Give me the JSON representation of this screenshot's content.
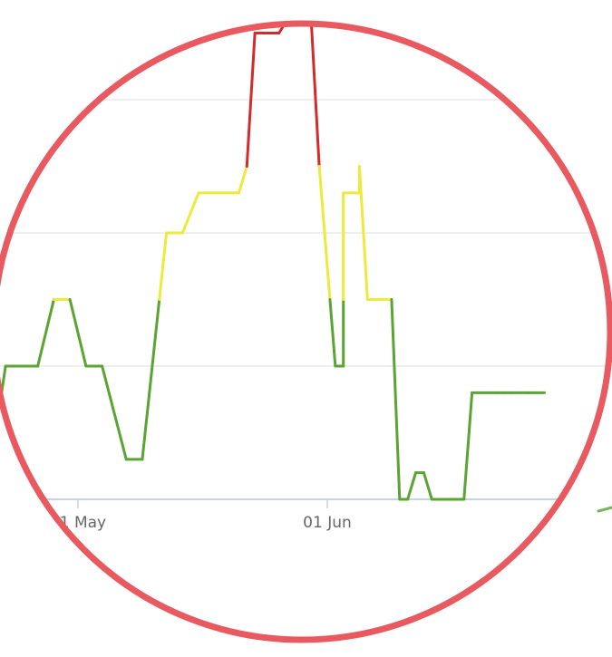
{
  "chart_data": {
    "type": "line",
    "title": "",
    "xlabel": "",
    "ylabel": "",
    "x_tick_labels": [
      "01 May",
      "01 Jun"
    ],
    "grid": true,
    "legend": "none",
    "color_thresholds": {
      "yellow_from": 1.5,
      "red_from": 2.5
    },
    "colors": {
      "green": "#5aa532",
      "yellow": "#eeea3c",
      "red": "#d42a2a",
      "gridline": "#dedede",
      "axis": "#c7d2e6",
      "tick_label": "#666666",
      "outline_circle": "#e85a5f",
      "stray_mark": "#78b45a"
    },
    "series": [
      {
        "x": [
          "2019-04-17",
          "2019-04-20",
          "2019-04-22",
          "2019-04-26",
          "2019-04-28",
          "2019-04-30",
          "2019-05-02",
          "2019-05-04",
          "2019-05-07",
          "2019-05-09",
          "2019-05-12",
          "2019-05-14",
          "2019-05-16",
          "2019-05-21",
          "2019-05-22",
          "2019-05-23",
          "2019-05-26",
          "2019-05-27",
          "2019-05-28",
          "2019-05-30",
          "2019-05-31",
          "2019-06-02",
          "2019-06-03",
          "2019-06-03",
          "2019-06-05",
          "2019-06-05",
          "2019-06-06",
          "2019-06-09",
          "2019-06-10",
          "2019-06-11",
          "2019-06-12",
          "2019-06-13",
          "2019-06-14",
          "2019-06-15",
          "2019-06-18",
          "2019-06-19",
          "2019-06-20",
          "2019-06-21",
          "2019-06-22",
          "2019-06-23",
          "2019-06-24",
          "2019-06-26",
          "2019-06-27",
          "2019-06-28"
        ],
        "y": [
          0.2,
          0.2,
          1.0,
          1.0,
          1.5,
          1.5,
          1.0,
          1.0,
          0.3,
          0.3,
          2.0,
          2.0,
          2.3,
          2.3,
          2.5,
          3.5,
          3.5,
          3.6,
          3.6,
          3.6,
          2.5,
          1.0,
          1.0,
          2.3,
          2.3,
          2.5,
          1.5,
          1.5,
          0.0,
          0.0,
          0.2,
          0.2,
          0.0,
          0.0,
          0.0,
          0.8,
          0.8,
          0.8,
          0.8,
          0.8,
          0.8,
          0.8,
          0.8,
          0.8
        ]
      }
    ]
  }
}
